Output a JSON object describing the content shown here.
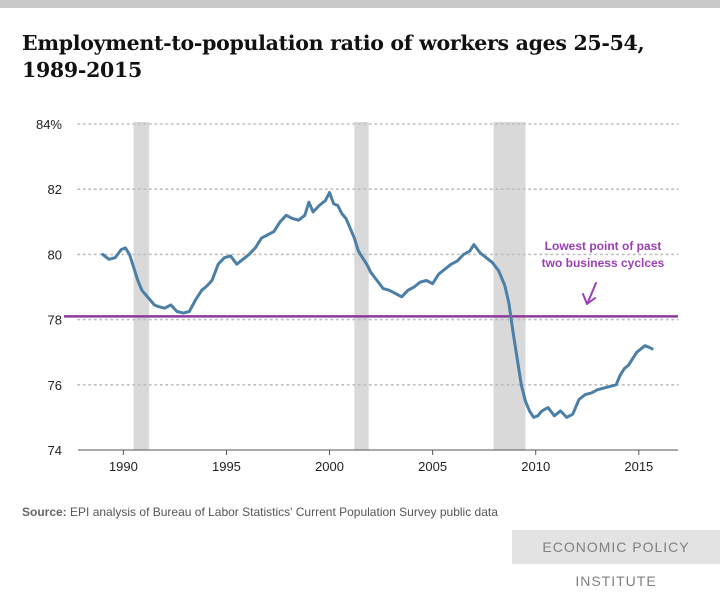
{
  "title": "Employment-to-population ratio of workers ages 25-54, 1989-2015",
  "source": {
    "label": "Source:",
    "text": "EPI analysis of  Bureau of Labor Statistics' Current Population Survey public data"
  },
  "brand": "ECONOMIC POLICY INSTITUTE",
  "colors": {
    "line": "#4b7fa6",
    "reference": "#8e3a9d",
    "recession": "#d9d9d9",
    "annotation": "#9b3fb5"
  },
  "chart_data": {
    "type": "line",
    "title": "Employment-to-population ratio of workers ages 25-54, 1989-2015",
    "xlabel": "",
    "ylabel": "",
    "xlim": [
      1987.8,
      2016.9
    ],
    "ylim": [
      74,
      84
    ],
    "x_ticks": [
      1990,
      1995,
      2000,
      2005,
      2010,
      2015
    ],
    "y_ticks": [
      {
        "value": 74,
        "label": "74"
      },
      {
        "value": 76,
        "label": "76"
      },
      {
        "value": 78,
        "label": "78"
      },
      {
        "value": 80,
        "label": "80"
      },
      {
        "value": 82,
        "label": "82"
      },
      {
        "value": 84,
        "label": "84%"
      }
    ],
    "grid": "horizontal-dotted",
    "recessions": [
      [
        1990.5,
        1991.25
      ],
      [
        2001.2,
        2001.9
      ],
      [
        2007.95,
        2009.5
      ]
    ],
    "reference_line": {
      "value": 78.1,
      "label_lines": [
        "Lowest point of past",
        "two business cyclces"
      ]
    },
    "series": [
      {
        "x": [
          1989.0,
          1989.3,
          1989.6,
          1989.9,
          1990.1,
          1990.3,
          1990.5,
          1990.7,
          1990.9,
          1991.1,
          1991.3,
          1991.5,
          1991.7,
          1992.0,
          1992.3,
          1992.6,
          1992.9,
          1993.2,
          1993.5,
          1993.8,
          1994.0,
          1994.3,
          1994.6,
          1994.9,
          1995.2,
          1995.5,
          1995.8,
          1996.1,
          1996.4,
          1996.7,
          1997.0,
          1997.3,
          1997.6,
          1997.9,
          1998.2,
          1998.5,
          1998.8,
          1999.0,
          1999.2,
          1999.5,
          1999.8,
          2000.0,
          2000.2,
          2000.4,
          2000.6,
          2000.8,
          2001.0,
          2001.2,
          2001.4,
          2001.6,
          2001.8,
          2002.0,
          2002.3,
          2002.6,
          2002.9,
          2003.2,
          2003.5,
          2003.8,
          2004.1,
          2004.4,
          2004.7,
          2005.0,
          2005.3,
          2005.6,
          2005.9,
          2006.2,
          2006.5,
          2006.8,
          2007.0,
          2007.3,
          2007.6,
          2007.9,
          2008.2,
          2008.5,
          2008.7,
          2008.9,
          2009.1,
          2009.3,
          2009.5,
          2009.7,
          2009.9,
          2010.1,
          2010.3,
          2010.6,
          2010.9,
          2011.2,
          2011.5,
          2011.8,
          2012.1,
          2012.4,
          2012.7,
          2013.0,
          2013.3,
          2013.6,
          2013.9,
          2014.1,
          2014.3,
          2014.5,
          2014.7,
          2014.9,
          2015.1,
          2015.3,
          2015.5,
          2015.65
        ],
        "values": [
          80.0,
          79.85,
          79.9,
          80.15,
          80.2,
          80.0,
          79.6,
          79.2,
          78.9,
          78.75,
          78.6,
          78.45,
          78.4,
          78.35,
          78.45,
          78.25,
          78.2,
          78.25,
          78.6,
          78.9,
          79.0,
          79.2,
          79.7,
          79.9,
          79.95,
          79.7,
          79.85,
          80.0,
          80.2,
          80.5,
          80.6,
          80.7,
          81.0,
          81.2,
          81.1,
          81.05,
          81.2,
          81.6,
          81.3,
          81.5,
          81.65,
          81.9,
          81.55,
          81.5,
          81.25,
          81.1,
          80.8,
          80.5,
          80.1,
          79.9,
          79.7,
          79.45,
          79.2,
          78.95,
          78.9,
          78.8,
          78.7,
          78.9,
          79.0,
          79.15,
          79.2,
          79.1,
          79.4,
          79.55,
          79.7,
          79.8,
          80.0,
          80.1,
          80.3,
          80.05,
          79.9,
          79.75,
          79.5,
          79.05,
          78.5,
          77.6,
          76.8,
          76.0,
          75.5,
          75.2,
          75.0,
          75.05,
          75.2,
          75.3,
          75.05,
          75.2,
          75.0,
          75.1,
          75.55,
          75.7,
          75.75,
          75.85,
          75.9,
          75.95,
          76.0,
          76.3,
          76.5,
          76.6,
          76.8,
          77.0,
          77.1,
          77.2,
          77.15,
          77.1
        ]
      }
    ]
  }
}
